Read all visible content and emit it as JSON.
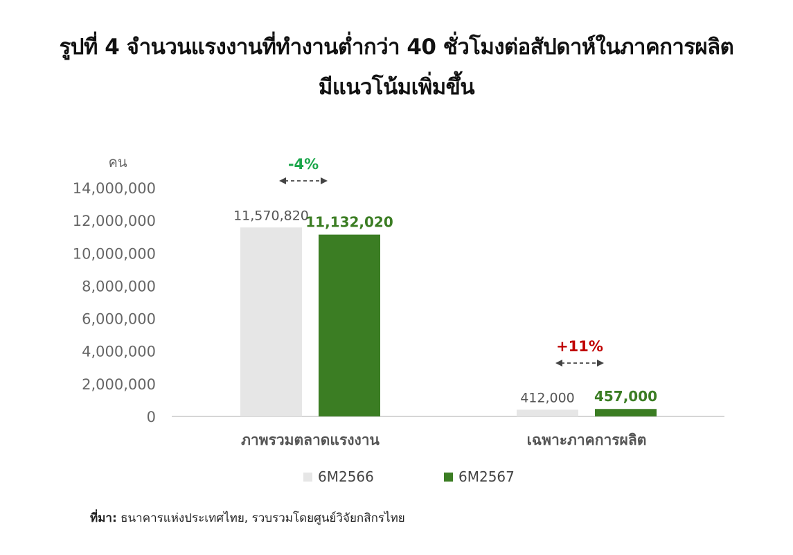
{
  "title_line1": "รูปที่ 4 จำนวนแรงงานที่ทำงานต่ำกว่า 40 ชั่วโมงต่อสัปดาห์ในภาคการผลิต",
  "title_line2": "มีแนวโน้มเพิ่มขึ้น",
  "chart_data": {
    "type": "bar",
    "ylabel": "คน",
    "ylim": [
      0,
      14000000
    ],
    "yticks": [
      "0",
      "2,000,000",
      "4,000,000",
      "6,000,000",
      "8,000,000",
      "10,000,000",
      "12,000,000",
      "14,000,000"
    ],
    "ytick_values": [
      0,
      2000000,
      4000000,
      6000000,
      8000000,
      10000000,
      12000000,
      14000000
    ],
    "categories": [
      "ภาพรวมตลาดแรงงาน",
      "เฉพาะภาคการผลิต"
    ],
    "series": [
      {
        "name": "6M2566",
        "values": [
          11570820,
          412000
        ],
        "labels": [
          "11,570,820",
          "412,000"
        ],
        "color": "#e6e6e6",
        "label_color": "#555555"
      },
      {
        "name": "6M2567",
        "values": [
          11132020,
          457000
        ],
        "labels": [
          "11,132,020",
          "457,000"
        ],
        "color": "#3b7d23",
        "label_color": "#3b7d23"
      }
    ],
    "annotations": [
      {
        "category_index": 0,
        "text": "-4%",
        "color": "#1aa64a"
      },
      {
        "category_index": 1,
        "text": "+11%",
        "color": "#c00000"
      }
    ],
    "grid": false,
    "legend_position": "bottom"
  },
  "source": {
    "label": "ที่มา:",
    "text": " ธนาคารแห่งประเทศไทย, รวบรวมโดยศูนย์วิจัยกสิกรไทย"
  }
}
